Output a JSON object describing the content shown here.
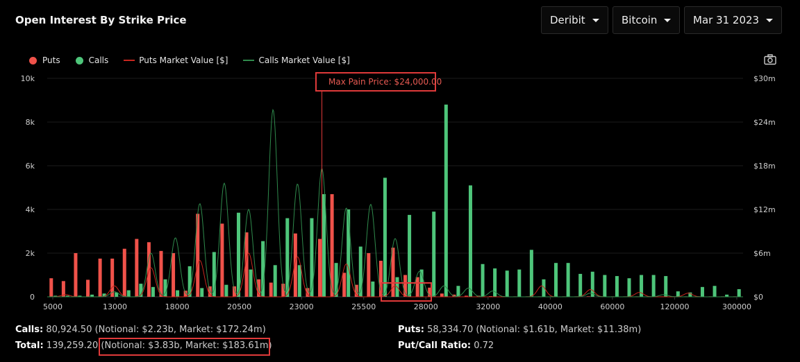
{
  "header": {
    "title": "Open Interest By Strike Price"
  },
  "dropdowns": {
    "exchange": "Deribit",
    "asset": "Bitcoin",
    "expiry": "Mar 31 2023"
  },
  "legend": {
    "puts": "Puts",
    "calls": "Calls",
    "puts_mv": "Puts Market Value [$]",
    "calls_mv": "Calls Market Value [$]"
  },
  "colors": {
    "puts": "#f0524a",
    "calls": "#4ec57a",
    "puts_line": "#c8261e",
    "calls_line": "#2f8a4c",
    "highlight": "#e03a3a"
  },
  "annotation": {
    "max_pain": "Max Pain Price: $24,000.00"
  },
  "chart_data": {
    "type": "bar",
    "title": "Open Interest By Strike Price",
    "ylim_left": [
      0,
      10000
    ],
    "ylim_right": [
      0,
      30000000
    ],
    "y_ticks_left": [
      "0",
      "2k",
      "4k",
      "6k",
      "8k",
      "10k"
    ],
    "y_ticks_right": [
      "$0",
      "$6m",
      "$12m",
      "$18m",
      "$24m",
      "$30m"
    ],
    "x_tick_labels": [
      "5000",
      "13000",
      "18000",
      "20500",
      "23000",
      "25500",
      "28000",
      "32000",
      "40000",
      "60000",
      "120000",
      "300000"
    ],
    "max_pain_strike": 24000,
    "strike_count": 57,
    "series": [
      {
        "name": "Puts",
        "values": [
          850,
          720,
          2000,
          780,
          1750,
          1750,
          2200,
          2650,
          2500,
          2100,
          2000,
          280,
          3800,
          480,
          3350,
          480,
          2950,
          800,
          650,
          600,
          2900,
          400,
          2650,
          4700,
          1100,
          550,
          2000,
          1650,
          2250,
          1000,
          900,
          420,
          150,
          100,
          50,
          50,
          30,
          30,
          20,
          20,
          20,
          20,
          20,
          20,
          20,
          20,
          20,
          20,
          20,
          20,
          20,
          20,
          20,
          20,
          20,
          20,
          20
        ]
      },
      {
        "name": "Calls",
        "values": [
          50,
          50,
          50,
          100,
          150,
          200,
          300,
          600,
          450,
          800,
          300,
          1400,
          400,
          2050,
          550,
          3850,
          1250,
          2550,
          1450,
          3600,
          1450,
          3600,
          4700,
          1550,
          4000,
          2300,
          700,
          5450,
          900,
          3750,
          1250,
          3900,
          8800,
          500,
          5100,
          1500,
          1300,
          1200,
          1250,
          2150,
          800,
          1550,
          1550,
          1050,
          1150,
          1000,
          950,
          850,
          1000,
          1000,
          950,
          250,
          200,
          450,
          500,
          100,
          350
        ]
      },
      {
        "name": "Puts Market Value [$]",
        "peaks": [
          [
            1,
            300000
          ],
          [
            5,
            1500000
          ],
          [
            8,
            4000000
          ],
          [
            12,
            5000000
          ],
          [
            16,
            6000000
          ],
          [
            20,
            5500000
          ],
          [
            24,
            4500000
          ],
          [
            28,
            1500000
          ],
          [
            40,
            1500000
          ],
          [
            44,
            1000000
          ],
          [
            48,
            600000
          ],
          [
            52,
            500000
          ]
        ]
      },
      {
        "name": "Calls Market Value [$]",
        "peaks": [
          [
            5,
            700000
          ],
          [
            8,
            6000000
          ],
          [
            10,
            8100000
          ],
          [
            12,
            12800000
          ],
          [
            14,
            15600000
          ],
          [
            16,
            12000000
          ],
          [
            18,
            25700000
          ],
          [
            20,
            15500000
          ],
          [
            22,
            17600000
          ],
          [
            24,
            12200000
          ],
          [
            26,
            12700000
          ],
          [
            28,
            8000000
          ],
          [
            30,
            3500000
          ],
          [
            32,
            1500000
          ],
          [
            34,
            1200000
          ],
          [
            36,
            800000
          ],
          [
            44,
            500000
          ],
          [
            50,
            300000
          ]
        ]
      }
    ]
  },
  "stats": {
    "calls_label": "Calls:",
    "calls_value": "80,924.50 (Notional: $2.23b, Market: $172.24m)",
    "puts_label": "Puts:",
    "puts_value": "58,334.70 (Notional: $1.61b, Market: $11.38m)",
    "total_label": "Total:",
    "total_prefix": "139,259.20 (",
    "total_value": "Notional: $3.83b, Market: $183.61m)",
    "ratio_label": "Put/Call Ratio:",
    "ratio_value": "0.72"
  }
}
